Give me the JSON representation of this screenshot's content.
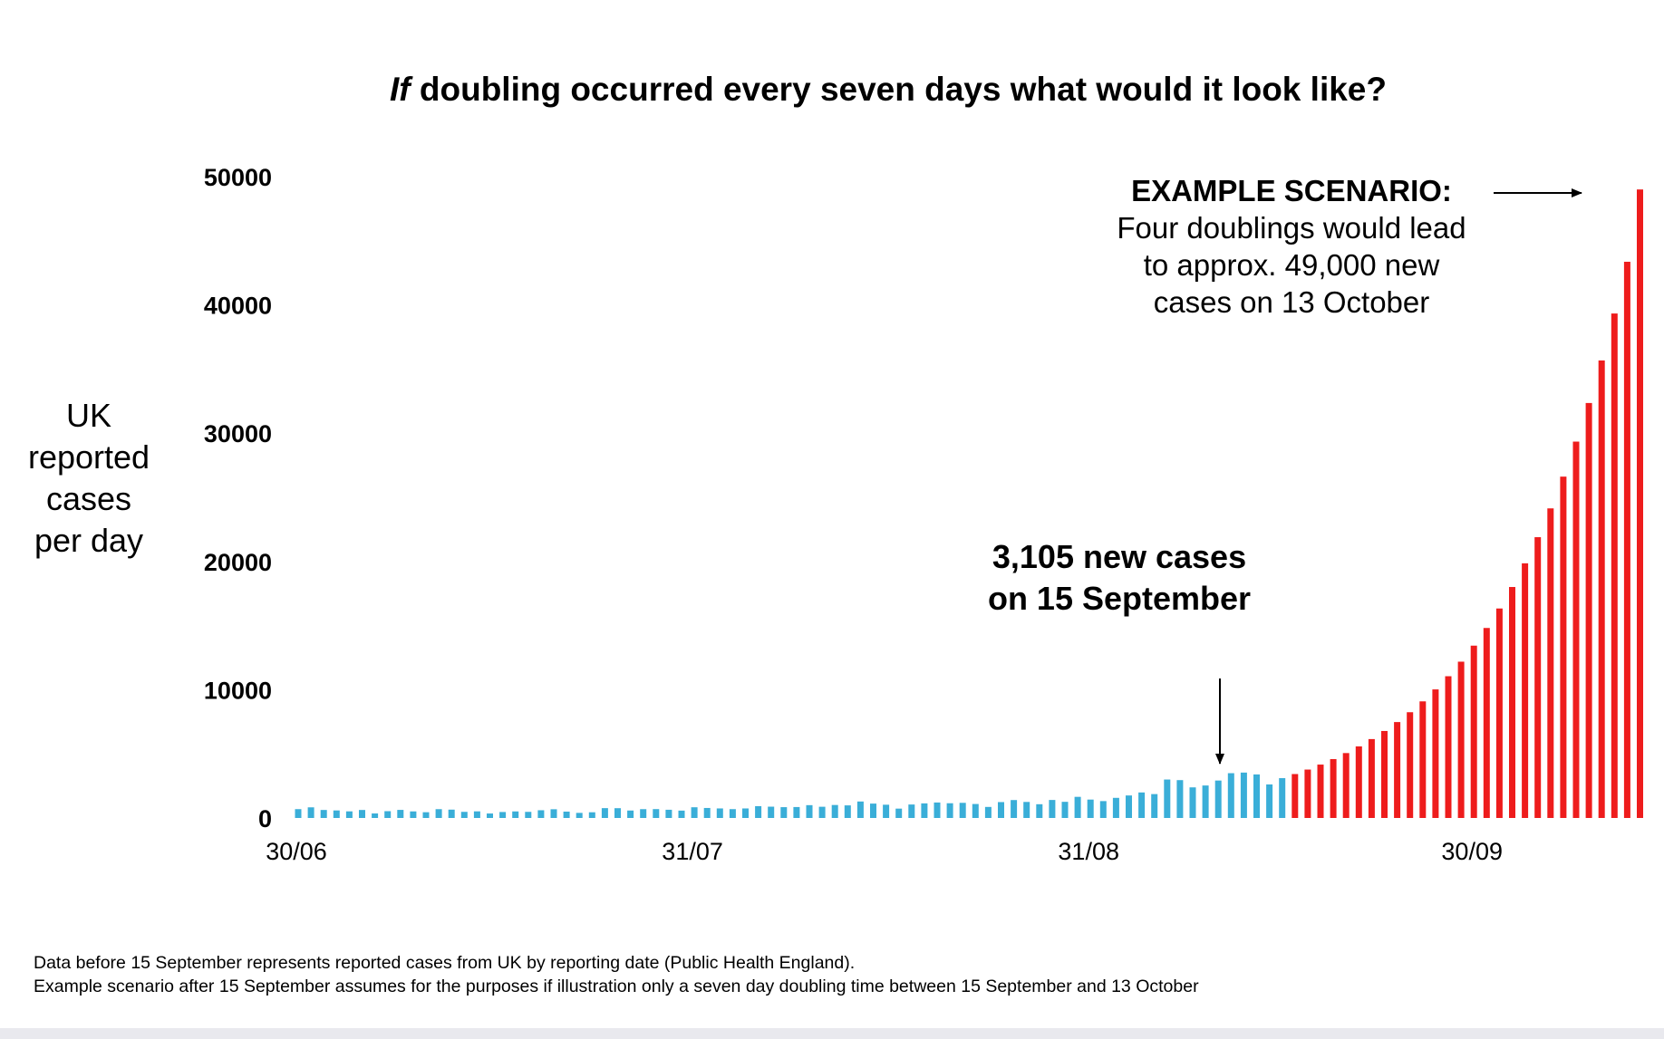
{
  "title": {
    "italic": "If",
    "rest": " doubling occurred every seven days what would it look like?"
  },
  "y_axis_label": [
    "UK",
    "reported",
    "cases",
    "per day"
  ],
  "annotations": {
    "scenario_heading": "EXAMPLE SCENARIO:",
    "scenario_lines": [
      "Four doublings would lead",
      "to approx. 49,000 new",
      "cases on 13 October"
    ],
    "sept_lines": [
      "3,105 new cases",
      "on 15 September"
    ]
  },
  "footnotes": [
    "Data before 15 September represents reported cases from UK by reporting date (Public Health England).",
    "Example scenario after 15 September assumes for the purposes if illustration only a seven day doubling time between 15 September and 13 October"
  ],
  "colors": {
    "observed": "#3aaed8",
    "scenario": "#ee1c1c",
    "text": "#000000"
  },
  "chart_data": {
    "type": "bar",
    "title": "If doubling occurred every seven days what would it look like?",
    "ylabel": "UK reported cases per day",
    "xlabel": "",
    "ylim": [
      0,
      50000
    ],
    "y_ticks": [
      0,
      10000,
      20000,
      30000,
      40000,
      50000
    ],
    "x_tick_labels": [
      {
        "label": "30/06",
        "day_index": 0
      },
      {
        "label": "31/07",
        "day_index": 31
      },
      {
        "label": "31/08",
        "day_index": 62
      },
      {
        "label": "30/09",
        "day_index": 92
      }
    ],
    "start_date": "30/06",
    "series": [
      {
        "name": "Reported cases (Public Health England)",
        "start_index": 0,
        "values": [
          689,
          829,
          624,
          587,
          516,
          624,
          352,
          530,
          630,
          512,
          448,
          687,
          650,
          477,
          516,
          349,
          465,
          511,
          477,
          603,
          680,
          496,
          398,
          445,
          767,
          763,
          581,
          687,
          692,
          641,
          575,
          835,
          780,
          744,
          689,
          743,
          922,
          881,
          843,
          853,
          1000,
          874,
          1012,
          982,
          1284,
          1121,
          1033,
          729,
          1050,
          1137,
          1206,
          1149,
          1180,
          1090,
          861,
          1239,
          1397,
          1250,
          1072,
          1404,
          1259,
          1647,
          1434,
          1315,
          1568,
          1755,
          1989,
          1862,
          2998,
          2951,
          2386,
          2532,
          2919,
          3492,
          3539,
          3394,
          2614,
          3105
        ]
      },
      {
        "name": "Example scenario (7-day doubling)",
        "start_index": 77,
        "values": [
          3105,
          3424,
          3775,
          4162,
          4589,
          5060,
          5579,
          6151,
          6782,
          7478,
          8245,
          9091,
          10023,
          11051,
          12185,
          13435,
          14813,
          16332,
          18007,
          19854,
          21891,
          24136,
          26612,
          29342,
          32352,
          35670,
          39330,
          43364,
          49000
        ]
      }
    ]
  }
}
